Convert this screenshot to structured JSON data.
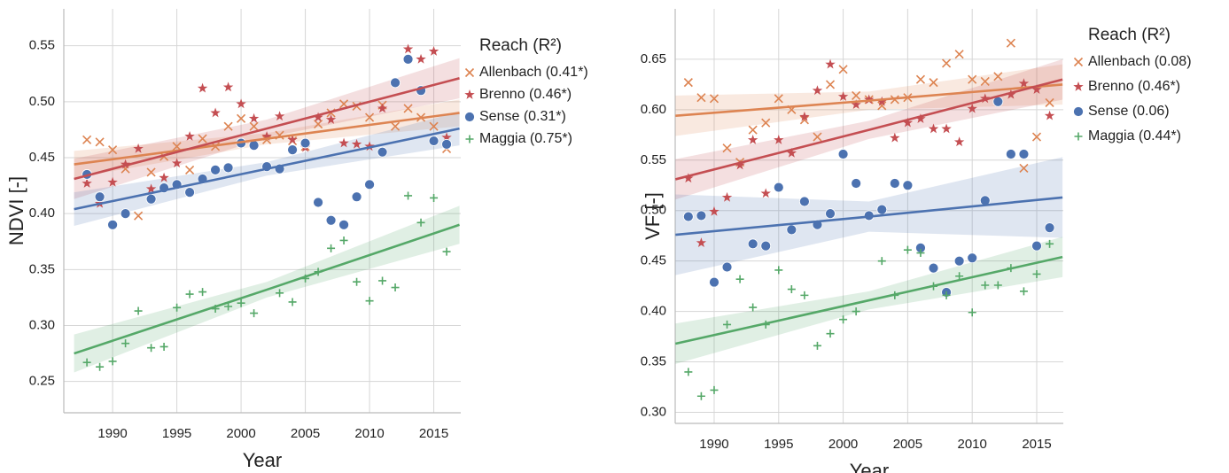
{
  "chart_data": [
    {
      "type": "scatter",
      "xlabel": "Year",
      "ylabel": "NDVI [-]",
      "legend_title": "Reach (R²)",
      "grid": true,
      "x": [
        1988,
        1989,
        1990,
        1991,
        1992,
        1993,
        1994,
        1995,
        1996,
        1997,
        1998,
        1999,
        2000,
        2001,
        2002,
        2003,
        2004,
        2005,
        2006,
        2007,
        2008,
        2009,
        2010,
        2011,
        2012,
        2013,
        2014,
        2015,
        2016
      ],
      "xlim": [
        1986.2,
        2017.1
      ],
      "xticks": [
        1990,
        1995,
        2000,
        2005,
        2010,
        2015
      ],
      "ylim": [
        0.222,
        0.583
      ],
      "yticks": [
        0.25,
        {
          "value": 0.3,
          "label": "0.30"
        },
        0.35,
        {
          "value": 0.4,
          "label": "0.40"
        },
        0.45,
        {
          "value": 0.5,
          "label": "0.50"
        },
        0.55
      ],
      "series": [
        {
          "name": "Allenbach (0.41*)",
          "color": "#dd8452",
          "marker": "x",
          "values": [
            0.466,
            0.464,
            0.457,
            0.44,
            0.398,
            0.437,
            0.451,
            0.46,
            0.439,
            0.467,
            0.46,
            0.478,
            0.485,
            0.478,
            0.466,
            0.47,
            0.465,
            0.46,
            0.48,
            0.49,
            0.498,
            0.496,
            0.486,
            0.497,
            0.478,
            0.494,
            0.486,
            0.478,
            0.458
          ],
          "fit": {
            "x": [
              1987,
              2002,
              2017
            ],
            "y": [
              0.444,
              0.467,
              0.49
            ],
            "ci_low": [
              0.432,
              0.462,
              0.478
            ],
            "ci_high": [
              0.456,
              0.472,
              0.502
            ]
          }
        },
        {
          "name": "Brenno (0.46*)",
          "color": "#c44e52",
          "marker": "star",
          "values": [
            0.427,
            0.409,
            0.428,
            0.444,
            0.458,
            0.422,
            0.432,
            0.445,
            0.469,
            0.512,
            0.49,
            0.513,
            0.498,
            0.485,
            0.469,
            0.487,
            0.466,
            0.459,
            0.486,
            0.484,
            0.463,
            0.462,
            0.46,
            0.494,
            0.517,
            0.547,
            0.538,
            0.545,
            0.468
          ],
          "fit": {
            "x": [
              1987,
              2002,
              2017
            ],
            "y": [
              0.431,
              0.476,
              0.521
            ],
            "ci_low": [
              0.413,
              0.468,
              0.503
            ],
            "ci_high": [
              0.449,
              0.484,
              0.539
            ]
          }
        },
        {
          "name": "Sense (0.31*)",
          "color": "#4c72b0",
          "marker": "circle",
          "values": [
            0.435,
            0.415,
            0.39,
            0.4,
            null,
            0.413,
            0.423,
            0.426,
            0.419,
            0.431,
            0.439,
            0.441,
            0.463,
            0.461,
            0.442,
            0.44,
            0.457,
            0.463,
            0.41,
            0.394,
            0.39,
            0.415,
            0.426,
            0.455,
            0.517,
            0.538,
            0.51,
            0.465,
            0.462
          ],
          "fit": {
            "x": [
              1987,
              2002,
              2017
            ],
            "y": [
              0.404,
              0.44,
              0.476
            ],
            "ci_low": [
              0.389,
              0.434,
              0.461
            ],
            "ci_high": [
              0.419,
              0.446,
              0.491
            ]
          }
        },
        {
          "name": "Maggia (0.75*)",
          "color": "#55a868",
          "marker": "plus",
          "values": [
            0.267,
            0.263,
            0.268,
            0.284,
            0.313,
            0.28,
            0.281,
            0.316,
            0.328,
            0.33,
            0.315,
            0.317,
            0.32,
            0.311,
            null,
            0.329,
            0.321,
            0.342,
            0.348,
            0.369,
            0.376,
            0.339,
            0.322,
            0.34,
            0.334,
            0.416,
            0.392,
            0.414,
            0.366
          ],
          "fit": {
            "x": [
              1987,
              2002,
              2017
            ],
            "y": [
              0.275,
              0.332,
              0.39
            ],
            "ci_low": [
              0.258,
              0.325,
              0.373
            ],
            "ci_high": [
              0.292,
              0.339,
              0.407
            ]
          }
        }
      ]
    },
    {
      "type": "scatter",
      "xlabel": "Year",
      "ylabel": "VF [-]",
      "legend_title": "Reach (R²)",
      "grid": true,
      "x": [
        1988,
        1989,
        1990,
        1991,
        1992,
        1993,
        1994,
        1995,
        1996,
        1997,
        1998,
        1999,
        2000,
        2001,
        2002,
        2003,
        2004,
        2005,
        2006,
        2007,
        2008,
        2009,
        2010,
        2011,
        2012,
        2013,
        2014,
        2015,
        2016
      ],
      "xlim": [
        1986.98,
        2017.06
      ],
      "xticks": [
        1990,
        1995,
        2000,
        2005,
        2010,
        2015
      ],
      "ylim": [
        0.289,
        0.7
      ],
      "yticks": [
        {
          "value": 0.3,
          "label": "0.30"
        },
        0.35,
        {
          "value": 0.4,
          "label": "0.40"
        },
        0.45,
        {
          "value": 0.5,
          "label": "0.50"
        },
        0.55,
        {
          "value": 0.6,
          "label": "0.60"
        },
        0.65
      ],
      "series": [
        {
          "name": "Allenbach (0.08)",
          "color": "#dd8452",
          "marker": "x",
          "values": [
            0.627,
            0.612,
            0.611,
            0.562,
            0.548,
            0.58,
            0.587,
            0.611,
            0.6,
            0.59,
            0.573,
            0.625,
            0.64,
            0.614,
            0.61,
            0.604,
            0.61,
            0.612,
            0.63,
            0.627,
            0.646,
            0.655,
            0.63,
            0.628,
            0.633,
            0.666,
            0.542,
            0.573,
            0.607
          ],
          "fit": {
            "x": [
              1987,
              2002,
              2017
            ],
            "y": [
              0.594,
              0.609,
              0.625
            ],
            "ci_low": [
              0.574,
              0.6,
              0.605
            ],
            "ci_high": [
              0.614,
              0.618,
              0.645
            ]
          }
        },
        {
          "name": "Brenno (0.46*)",
          "color": "#c44e52",
          "marker": "star",
          "values": [
            0.532,
            0.468,
            0.499,
            0.513,
            0.545,
            0.57,
            0.517,
            0.57,
            0.557,
            0.593,
            0.619,
            0.645,
            0.613,
            0.605,
            0.61,
            0.608,
            0.572,
            0.587,
            0.591,
            0.581,
            0.581,
            0.568,
            0.601,
            0.611,
            0.608,
            0.615,
            0.626,
            0.62,
            0.594
          ],
          "fit": {
            "x": [
              1987,
              2002,
              2017
            ],
            "y": [
              0.531,
              0.58,
              0.63
            ],
            "ci_low": [
              0.511,
              0.571,
              0.61
            ],
            "ci_high": [
              0.551,
              0.589,
              0.65
            ]
          }
        },
        {
          "name": "Sense (0.06)",
          "color": "#4c72b0",
          "marker": "circle",
          "values": [
            0.494,
            0.495,
            0.429,
            0.444,
            null,
            0.467,
            0.465,
            0.523,
            0.481,
            0.509,
            0.486,
            0.497,
            0.556,
            0.527,
            0.495,
            0.501,
            0.527,
            0.525,
            0.463,
            0.443,
            0.419,
            0.45,
            0.453,
            0.51,
            0.608,
            0.556,
            0.556,
            0.465,
            0.483
          ],
          "fit": {
            "x": [
              1987,
              2002,
              2017
            ],
            "y": [
              0.476,
              0.494,
              0.513
            ],
            "ci_low": [
              0.436,
              0.479,
              0.473
            ],
            "ci_high": [
              0.516,
              0.509,
              0.553
            ]
          }
        },
        {
          "name": "Maggia (0.44*)",
          "color": "#55a868",
          "marker": "plus",
          "values": [
            0.34,
            0.316,
            0.322,
            0.387,
            0.432,
            0.404,
            0.387,
            0.441,
            0.422,
            0.416,
            0.366,
            0.378,
            0.392,
            0.4,
            null,
            0.45,
            0.416,
            0.461,
            0.458,
            0.425,
            0.416,
            0.435,
            0.399,
            0.426,
            0.426,
            0.443,
            0.42,
            0.437,
            0.467
          ],
          "fit": {
            "x": [
              1987,
              2002,
              2017
            ],
            "y": [
              0.368,
              0.411,
              0.454
            ],
            "ci_low": [
              0.348,
              0.402,
              0.434
            ],
            "ci_high": [
              0.388,
              0.42,
              0.474
            ]
          }
        }
      ]
    }
  ]
}
